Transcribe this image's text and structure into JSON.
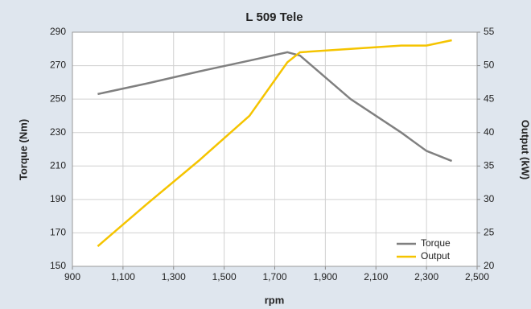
{
  "chart_data": {
    "type": "line",
    "title": "L 509 Tele",
    "xlabel": "rpm",
    "ylabel": "Torque (Nm)",
    "y2label": "Output (kW)",
    "x": [
      1000,
      1200,
      1400,
      1600,
      1750,
      1800,
      2000,
      2200,
      2300,
      2400
    ],
    "series": [
      {
        "name": "Torque",
        "color": "#808080",
        "axis": "y",
        "values": [
          253,
          259.5,
          266.5,
          273,
          278,
          276,
          250,
          230,
          219,
          213
        ]
      },
      {
        "name": "Output",
        "color": "#f5c400",
        "axis": "y2",
        "values": [
          23,
          29.5,
          35.8,
          42.5,
          50.5,
          52,
          52.5,
          53,
          53,
          53.8
        ]
      }
    ],
    "xlim": [
      900,
      2500
    ],
    "xticks": [
      900,
      {
        "value": 1100,
        "label": "1,100"
      },
      {
        "value": 1300,
        "label": "1,300"
      },
      {
        "value": 1500,
        "label": "1,500"
      },
      {
        "value": 1700,
        "label": "1,700"
      },
      {
        "value": 1900,
        "label": "1,900"
      },
      {
        "value": 2100,
        "label": "2,100"
      },
      {
        "value": 2300,
        "label": "2,300"
      },
      {
        "value": 2500,
        "label": "2,500"
      }
    ],
    "ylim": [
      150,
      290
    ],
    "yticks": [
      150,
      170,
      190,
      210,
      230,
      250,
      270,
      290
    ],
    "y2lim": [
      20,
      55
    ],
    "y2ticks": [
      20,
      25,
      30,
      35,
      40,
      45,
      50,
      55
    ],
    "grid": true,
    "legend": "lower right"
  }
}
